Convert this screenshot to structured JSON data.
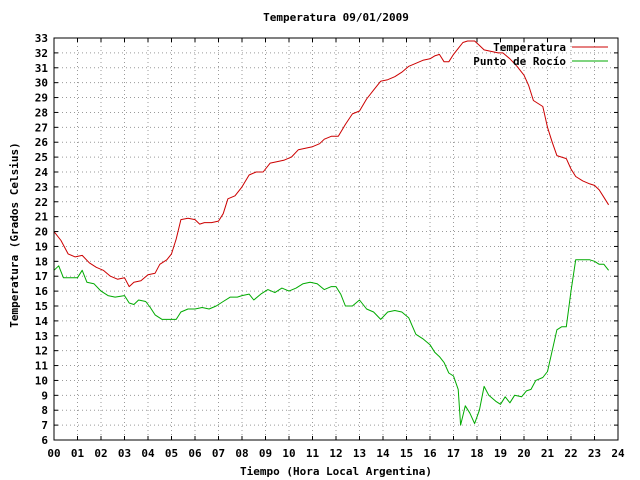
{
  "chart_data": {
    "type": "line",
    "title": "Temperatura 09/01/2009",
    "xlabel": "Tiempo (Hora Local Argentina)",
    "ylabel": "Temperatura (Grados Celsius)",
    "xlim": [
      0,
      24
    ],
    "ylim": [
      6,
      33
    ],
    "x_ticks": [
      "00",
      "01",
      "02",
      "03",
      "04",
      "05",
      "06",
      "07",
      "08",
      "09",
      "10",
      "11",
      "12",
      "13",
      "14",
      "15",
      "16",
      "17",
      "18",
      "19",
      "20",
      "21",
      "22",
      "23",
      "24"
    ],
    "y_ticks": [
      6,
      7,
      8,
      9,
      10,
      11,
      12,
      13,
      14,
      15,
      16,
      17,
      18,
      19,
      20,
      21,
      22,
      23,
      24,
      25,
      26,
      27,
      28,
      29,
      30,
      31,
      32,
      33
    ],
    "grid": true,
    "legend_position": "top-right",
    "series": [
      {
        "name": "Temperatura",
        "color": "#cc0000",
        "points": [
          [
            0.0,
            20.0
          ],
          [
            0.3,
            19.4
          ],
          [
            0.6,
            18.5
          ],
          [
            0.9,
            18.3
          ],
          [
            1.2,
            18.4
          ],
          [
            1.5,
            17.9
          ],
          [
            1.8,
            17.6
          ],
          [
            2.1,
            17.4
          ],
          [
            2.4,
            17.0
          ],
          [
            2.7,
            16.8
          ],
          [
            3.0,
            16.9
          ],
          [
            3.2,
            16.3
          ],
          [
            3.4,
            16.6
          ],
          [
            3.7,
            16.7
          ],
          [
            4.0,
            17.1
          ],
          [
            4.3,
            17.2
          ],
          [
            4.5,
            17.8
          ],
          [
            4.8,
            18.1
          ],
          [
            5.0,
            18.5
          ],
          [
            5.2,
            19.5
          ],
          [
            5.4,
            20.8
          ],
          [
            5.7,
            20.9
          ],
          [
            6.0,
            20.8
          ],
          [
            6.2,
            20.5
          ],
          [
            6.4,
            20.6
          ],
          [
            6.7,
            20.6
          ],
          [
            7.0,
            20.7
          ],
          [
            7.2,
            21.2
          ],
          [
            7.4,
            22.2
          ],
          [
            7.7,
            22.4
          ],
          [
            8.0,
            23.0
          ],
          [
            8.3,
            23.8
          ],
          [
            8.6,
            24.0
          ],
          [
            8.9,
            24.0
          ],
          [
            9.2,
            24.6
          ],
          [
            9.5,
            24.7
          ],
          [
            9.8,
            24.8
          ],
          [
            10.1,
            25.0
          ],
          [
            10.4,
            25.5
          ],
          [
            10.7,
            25.6
          ],
          [
            11.0,
            25.7
          ],
          [
            11.3,
            25.9
          ],
          [
            11.5,
            26.2
          ],
          [
            11.8,
            26.4
          ],
          [
            12.1,
            26.4
          ],
          [
            12.4,
            27.2
          ],
          [
            12.7,
            27.9
          ],
          [
            13.0,
            28.1
          ],
          [
            13.3,
            28.9
          ],
          [
            13.6,
            29.5
          ],
          [
            13.9,
            30.1
          ],
          [
            14.2,
            30.2
          ],
          [
            14.5,
            30.4
          ],
          [
            14.8,
            30.7
          ],
          [
            15.1,
            31.1
          ],
          [
            15.4,
            31.3
          ],
          [
            15.7,
            31.5
          ],
          [
            16.0,
            31.6
          ],
          [
            16.2,
            31.8
          ],
          [
            16.4,
            31.9
          ],
          [
            16.6,
            31.4
          ],
          [
            16.8,
            31.4
          ],
          [
            17.0,
            31.9
          ],
          [
            17.2,
            32.3
          ],
          [
            17.4,
            32.7
          ],
          [
            17.6,
            32.8
          ],
          [
            17.9,
            32.8
          ],
          [
            18.1,
            32.5
          ],
          [
            18.3,
            32.2
          ],
          [
            18.6,
            32.1
          ],
          [
            18.9,
            32.0
          ],
          [
            19.1,
            32.0
          ],
          [
            19.4,
            31.6
          ],
          [
            19.7,
            31.1
          ],
          [
            20.0,
            30.5
          ],
          [
            20.2,
            29.8
          ],
          [
            20.4,
            28.8
          ],
          [
            20.6,
            28.6
          ],
          [
            20.8,
            28.4
          ],
          [
            21.0,
            27.0
          ],
          [
            21.2,
            26.0
          ],
          [
            21.4,
            25.1
          ],
          [
            21.6,
            25.0
          ],
          [
            21.8,
            24.9
          ],
          [
            22.0,
            24.2
          ],
          [
            22.2,
            23.7
          ],
          [
            22.5,
            23.4
          ],
          [
            22.8,
            23.2
          ],
          [
            23.0,
            23.1
          ],
          [
            23.2,
            22.8
          ],
          [
            23.4,
            22.3
          ],
          [
            23.6,
            21.8
          ]
        ]
      },
      {
        "name": "Punto de Rocío",
        "color": "#00aa00",
        "points": [
          [
            0.0,
            17.4
          ],
          [
            0.2,
            17.7
          ],
          [
            0.4,
            16.9
          ],
          [
            0.7,
            16.9
          ],
          [
            1.0,
            16.9
          ],
          [
            1.2,
            17.4
          ],
          [
            1.4,
            16.6
          ],
          [
            1.7,
            16.5
          ],
          [
            2.0,
            16.0
          ],
          [
            2.3,
            15.7
          ],
          [
            2.6,
            15.6
          ],
          [
            3.0,
            15.7
          ],
          [
            3.2,
            15.2
          ],
          [
            3.4,
            15.1
          ],
          [
            3.6,
            15.4
          ],
          [
            3.9,
            15.3
          ],
          [
            4.1,
            14.9
          ],
          [
            4.3,
            14.4
          ],
          [
            4.6,
            14.1
          ],
          [
            4.9,
            14.1
          ],
          [
            5.2,
            14.1
          ],
          [
            5.4,
            14.6
          ],
          [
            5.7,
            14.8
          ],
          [
            6.0,
            14.8
          ],
          [
            6.3,
            14.9
          ],
          [
            6.6,
            14.8
          ],
          [
            6.9,
            15.0
          ],
          [
            7.2,
            15.3
          ],
          [
            7.5,
            15.6
          ],
          [
            7.8,
            15.6
          ],
          [
            8.0,
            15.7
          ],
          [
            8.3,
            15.8
          ],
          [
            8.5,
            15.4
          ],
          [
            8.8,
            15.8
          ],
          [
            9.1,
            16.1
          ],
          [
            9.4,
            15.9
          ],
          [
            9.7,
            16.2
          ],
          [
            10.0,
            16.0
          ],
          [
            10.3,
            16.2
          ],
          [
            10.6,
            16.5
          ],
          [
            10.9,
            16.6
          ],
          [
            11.2,
            16.5
          ],
          [
            11.5,
            16.1
          ],
          [
            11.8,
            16.3
          ],
          [
            12.0,
            16.3
          ],
          [
            12.2,
            15.8
          ],
          [
            12.4,
            15.0
          ],
          [
            12.7,
            15.0
          ],
          [
            13.0,
            15.4
          ],
          [
            13.3,
            14.8
          ],
          [
            13.6,
            14.6
          ],
          [
            13.9,
            14.1
          ],
          [
            14.2,
            14.6
          ],
          [
            14.5,
            14.7
          ],
          [
            14.8,
            14.6
          ],
          [
            15.1,
            14.2
          ],
          [
            15.4,
            13.1
          ],
          [
            15.7,
            12.8
          ],
          [
            16.0,
            12.4
          ],
          [
            16.2,
            11.9
          ],
          [
            16.4,
            11.6
          ],
          [
            16.6,
            11.2
          ],
          [
            16.8,
            10.5
          ],
          [
            17.0,
            10.3
          ],
          [
            17.2,
            9.4
          ],
          [
            17.3,
            7.0
          ],
          [
            17.5,
            8.3
          ],
          [
            17.7,
            7.8
          ],
          [
            17.9,
            7.1
          ],
          [
            18.1,
            8.0
          ],
          [
            18.3,
            9.6
          ],
          [
            18.5,
            9.0
          ],
          [
            18.8,
            8.6
          ],
          [
            19.0,
            8.4
          ],
          [
            19.2,
            8.9
          ],
          [
            19.4,
            8.5
          ],
          [
            19.6,
            9.0
          ],
          [
            19.9,
            8.9
          ],
          [
            20.1,
            9.3
          ],
          [
            20.3,
            9.4
          ],
          [
            20.5,
            10.0
          ],
          [
            20.8,
            10.2
          ],
          [
            21.0,
            10.6
          ],
          [
            21.2,
            12.0
          ],
          [
            21.4,
            13.4
          ],
          [
            21.6,
            13.6
          ],
          [
            21.8,
            13.6
          ],
          [
            22.0,
            16.0
          ],
          [
            22.2,
            18.1
          ],
          [
            22.5,
            18.1
          ],
          [
            22.8,
            18.1
          ],
          [
            23.0,
            18.0
          ],
          [
            23.2,
            17.8
          ],
          [
            23.4,
            17.8
          ],
          [
            23.6,
            17.4
          ]
        ]
      }
    ]
  }
}
